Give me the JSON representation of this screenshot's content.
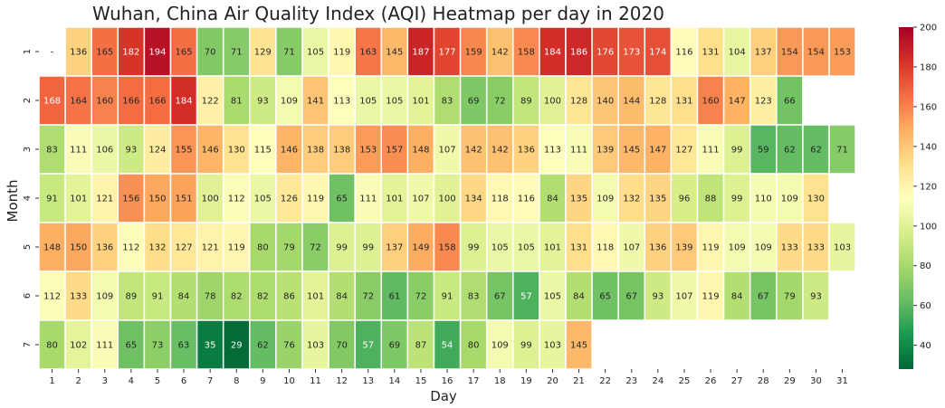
{
  "chart_data": {
    "type": "heatmap",
    "title": "Wuhan, China Air Quality Index (AQI) Heatmap per day in 2020",
    "xlabel": "Day",
    "ylabel": "Month",
    "x_categories": [
      "1",
      "2",
      "3",
      "4",
      "5",
      "6",
      "7",
      "8",
      "9",
      "10",
      "11",
      "12",
      "13",
      "14",
      "15",
      "16",
      "17",
      "18",
      "19",
      "20",
      "21",
      "22",
      "23",
      "24",
      "25",
      "26",
      "27",
      "28",
      "29",
      "30",
      "31"
    ],
    "y_categories": [
      "1",
      "2",
      "3",
      "4",
      "5",
      "6",
      "7"
    ],
    "missing_label": "-",
    "values": [
      [
        null,
        136,
        165,
        182,
        194,
        165,
        70,
        71,
        129,
        71,
        105,
        119,
        163,
        145,
        187,
        177,
        159,
        142,
        158,
        184,
        186,
        176,
        173,
        174,
        116,
        131,
        104,
        137,
        154,
        154,
        153
      ],
      [
        168,
        164,
        160,
        166,
        166,
        184,
        122,
        81,
        93,
        109,
        141,
        113,
        105,
        105,
        101,
        83,
        69,
        72,
        89,
        100,
        128,
        140,
        144,
        128,
        131,
        160,
        147,
        123,
        66,
        null,
        null
      ],
      [
        83,
        111,
        106,
        93,
        124,
        155,
        146,
        130,
        115,
        146,
        138,
        138,
        153,
        157,
        148,
        107,
        142,
        142,
        136,
        113,
        111,
        139,
        145,
        147,
        127,
        111,
        99,
        59,
        62,
        62,
        71
      ],
      [
        91,
        101,
        121,
        156,
        150,
        151,
        100,
        112,
        105,
        126,
        119,
        65,
        111,
        101,
        107,
        100,
        134,
        118,
        116,
        84,
        135,
        109,
        132,
        135,
        96,
        88,
        99,
        110,
        109,
        130,
        null
      ],
      [
        148,
        150,
        136,
        112,
        132,
        127,
        121,
        119,
        80,
        79,
        72,
        99,
        99,
        137,
        149,
        158,
        99,
        105,
        105,
        101,
        131,
        118,
        107,
        136,
        139,
        119,
        109,
        109,
        133,
        133,
        103
      ],
      [
        112,
        133,
        109,
        89,
        91,
        84,
        78,
        82,
        82,
        86,
        101,
        84,
        72,
        61,
        72,
        91,
        83,
        67,
        57,
        105,
        84,
        65,
        67,
        93,
        107,
        119,
        84,
        67,
        79,
        93,
        null
      ],
      [
        80,
        102,
        111,
        65,
        73,
        63,
        35,
        29,
        62,
        76,
        103,
        70,
        57,
        69,
        87,
        54,
        80,
        109,
        99,
        103,
        145,
        null,
        null,
        null,
        null,
        null,
        null,
        null,
        null,
        null,
        null
      ]
    ],
    "colormap": "RdYlGn_r",
    "colorbar": {
      "vmin": 28,
      "vmax": 200,
      "ticks": [
        "40",
        "60",
        "80",
        "100",
        "120",
        "140",
        "160",
        "180",
        "200"
      ]
    }
  }
}
